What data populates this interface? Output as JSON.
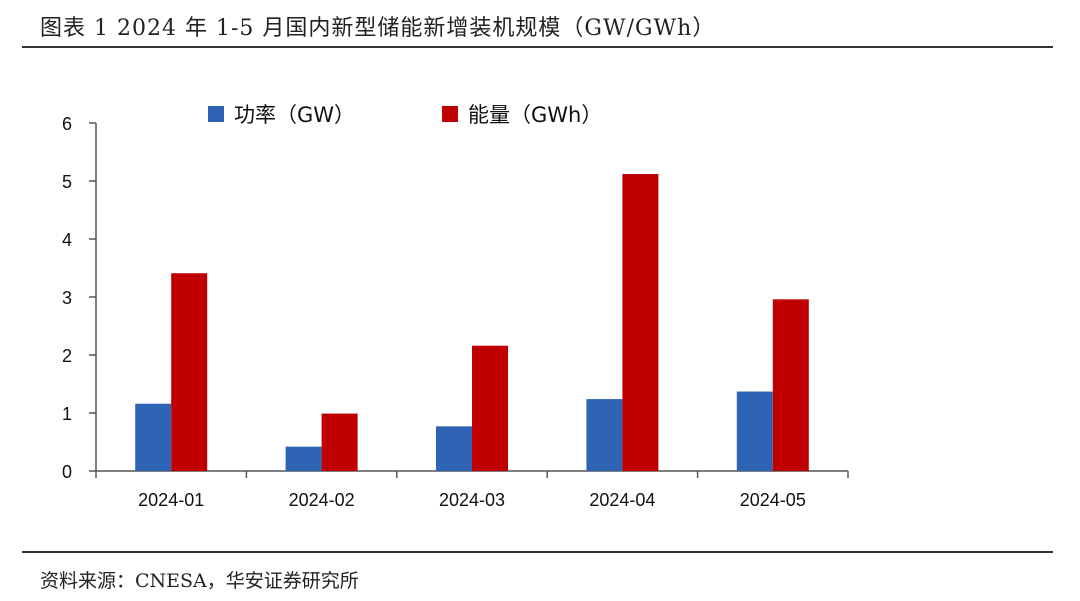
{
  "header": {
    "title": "图表 1 2024 年 1-5 月国内新型储能新增装机规模（GW/GWh）"
  },
  "footer": {
    "source": "资料来源：CNESA，华安证券研究所"
  },
  "chart_data": {
    "type": "bar",
    "categories": [
      "2024-01",
      "2024-02",
      "2024-03",
      "2024-04",
      "2024-05"
    ],
    "series": [
      {
        "name": "功率（GW）",
        "color": "#2f63b4",
        "values": [
          1.16,
          0.42,
          0.77,
          1.24,
          1.37
        ]
      },
      {
        "name": "能量（GWh）",
        "color": "#c00000",
        "values": [
          3.41,
          0.99,
          2.16,
          5.12,
          2.96
        ]
      }
    ],
    "ylim": [
      0,
      6
    ],
    "yticks": [
      "0",
      "1",
      "2",
      "3",
      "4",
      "5",
      "6"
    ],
    "legend_position": "top",
    "grid": false
  }
}
